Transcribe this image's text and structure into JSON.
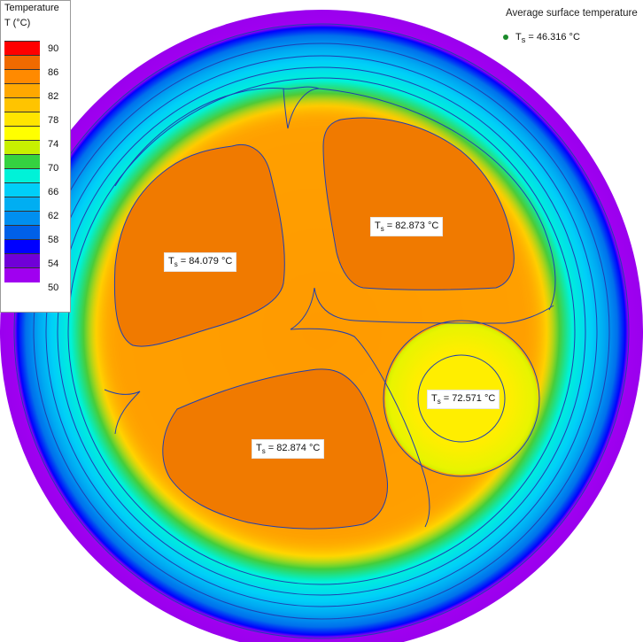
{
  "legend": {
    "title": "Temperature",
    "unit": "T (°C)",
    "ticks": [
      "90",
      "86",
      "82",
      "78",
      "74",
      "70",
      "66",
      "62",
      "58",
      "54",
      "50"
    ],
    "colors": [
      "#ff0000",
      "#f06a00",
      "#ff8a00",
      "#ffa800",
      "#ffc400",
      "#ffe500",
      "#ffff00",
      "#c8f000",
      "#35d240",
      "#00f2d8",
      "#00cff8",
      "#00aef2",
      "#008ff0",
      "#0060e8",
      "#0000ff",
      "#7000d8",
      "#a000f0"
    ]
  },
  "average": {
    "title": "Average surface temperature",
    "label": "T",
    "sub": "s",
    "value": "= 46.316 °C"
  },
  "conductors": [
    {
      "label": "T",
      "sub": "s",
      "value": "= 84.079 °C"
    },
    {
      "label": "T",
      "sub": "s",
      "value": "= 82.873 °C"
    },
    {
      "label": "T",
      "sub": "s",
      "value": "= 82.874 °C"
    },
    {
      "label": "T",
      "sub": "s",
      "value": "= 72.571 °C"
    }
  ],
  "colors": {
    "outer_sheath": "#a000f0",
    "outline": "#1f3fb0",
    "conductor_fill": "#f07a00",
    "filler": "#ff9500"
  }
}
